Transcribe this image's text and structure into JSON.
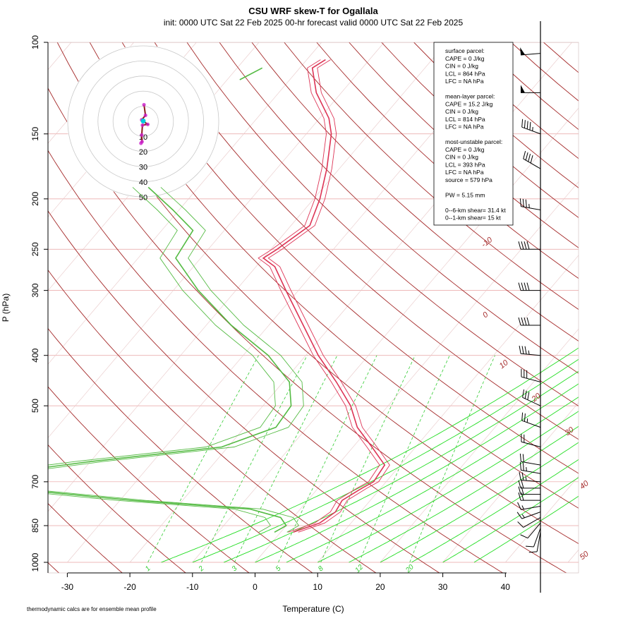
{
  "chart_data": {
    "type": "skew-T log-P sounding",
    "title": "CSU WRF skew-T for Ogallala",
    "subtitle": "init: 0000 UTC Sat 22 Feb 2025     00-hr forecast valid 0000 UTC Sat 22 Feb 2025",
    "xlabel": "Temperature (C)",
    "ylabel": "P (hPa)",
    "footnote": "thermodynamic calcs are for ensemble mean profile",
    "pressure_scale": "log",
    "pressure_range_hpa": [
      1000,
      100
    ],
    "temperature_ticks_c": [
      "-30",
      "-20",
      "-10",
      "0",
      "10",
      "20",
      "30",
      "40"
    ],
    "pressure_ticks_hpa": [
      "100",
      "150",
      "200",
      "250",
      "300",
      "400",
      "500",
      "700",
      "850",
      "1000"
    ],
    "isotherm_labels_c": [
      "-10",
      "0",
      "10",
      "20",
      "30",
      "40",
      "50"
    ],
    "mixing_ratio_labels_gkg": [
      "1",
      "2",
      "3",
      "5",
      "8",
      "12",
      "20"
    ],
    "temperature_series": [
      {
        "p": 875,
        "t": 2.0
      },
      {
        "p": 840,
        "t": 5.0
      },
      {
        "p": 800,
        "t": 6.0
      },
      {
        "p": 760,
        "t": 5.5
      },
      {
        "p": 720,
        "t": 7.0
      },
      {
        "p": 700,
        "t": 8.0
      },
      {
        "p": 650,
        "t": 7.5
      },
      {
        "p": 600,
        "t": 3.0
      },
      {
        "p": 550,
        "t": -2.0
      },
      {
        "p": 500,
        "t": -6.0
      },
      {
        "p": 450,
        "t": -11.5
      },
      {
        "p": 400,
        "t": -18.0
      },
      {
        "p": 350,
        "t": -24.5
      },
      {
        "p": 300,
        "t": -32.0
      },
      {
        "p": 270,
        "t": -37.0
      },
      {
        "p": 260,
        "t": -40.0
      },
      {
        "p": 250,
        "t": -39.0
      },
      {
        "p": 225,
        "t": -37.0
      },
      {
        "p": 200,
        "t": -39.0
      },
      {
        "p": 175,
        "t": -42.0
      },
      {
        "p": 150,
        "t": -46.0
      },
      {
        "p": 140,
        "t": -48.5
      },
      {
        "p": 125,
        "t": -54.0
      },
      {
        "p": 112,
        "t": -58.0
      },
      {
        "p": 108,
        "t": -57.0
      }
    ],
    "dewpoint_series": [
      {
        "p": 875,
        "t": -1.0
      },
      {
        "p": 850,
        "t": 0.0
      },
      {
        "p": 820,
        "t": -2.0
      },
      {
        "p": 790,
        "t": -8.0
      },
      {
        "p": 760,
        "t": -28.0
      },
      {
        "p": 720,
        "t": -50.0
      },
      {
        "p": 680,
        "t": -55.0
      },
      {
        "p": 640,
        "t": -40.0
      },
      {
        "p": 600,
        "t": -21.0
      },
      {
        "p": 550,
        "t": -15.0
      },
      {
        "p": 500,
        "t": -15.5
      },
      {
        "p": 450,
        "t": -19.0
      },
      {
        "p": 400,
        "t": -26.0
      },
      {
        "p": 350,
        "t": -36.0
      },
      {
        "p": 300,
        "t": -46.0
      },
      {
        "p": 260,
        "t": -54.0
      },
      {
        "p": 230,
        "t": -55.0
      },
      {
        "p": 210,
        "t": -61.0
      },
      {
        "p": 190,
        "t": -68.0
      }
    ],
    "stratosphere_dewpoint_segment": [
      {
        "p": 118,
        "t": -68.0
      },
      {
        "p": 112,
        "t": -66.0
      }
    ],
    "hodograph_ring_labels_kt": [
      "10",
      "20",
      "30",
      "40",
      "50"
    ],
    "hodograph_trace_kt": [
      {
        "u": 0.5,
        "v": 11.0
      },
      {
        "u": 1.5,
        "v": 4.0
      },
      {
        "u": -1.0,
        "v": 1.0
      },
      {
        "u": 3.0,
        "v": -2.0
      },
      {
        "u": -0.5,
        "v": -2.5
      },
      {
        "u": -1.0,
        "v": -9.0
      },
      {
        "u": -0.8,
        "v": -13.5
      },
      {
        "u": -1.5,
        "v": -14.5
      }
    ],
    "wind_barbs": [
      {
        "p": 875,
        "dir": 190,
        "kt": 10
      },
      {
        "p": 860,
        "dir": 200,
        "kt": 10
      },
      {
        "p": 840,
        "dir": 220,
        "kt": 10
      },
      {
        "p": 820,
        "dir": 240,
        "kt": 10
      },
      {
        "p": 800,
        "dir": 250,
        "kt": 15
      },
      {
        "p": 780,
        "dir": 260,
        "kt": 15
      },
      {
        "p": 760,
        "dir": 270,
        "kt": 20
      },
      {
        "p": 740,
        "dir": 270,
        "kt": 20
      },
      {
        "p": 720,
        "dir": 270,
        "kt": 20
      },
      {
        "p": 700,
        "dir": 275,
        "kt": 25
      },
      {
        "p": 675,
        "dir": 280,
        "kt": 25
      },
      {
        "p": 650,
        "dir": 280,
        "kt": 20
      },
      {
        "p": 600,
        "dir": 285,
        "kt": 20
      },
      {
        "p": 550,
        "dir": 290,
        "kt": 25
      },
      {
        "p": 500,
        "dir": 295,
        "kt": 30
      },
      {
        "p": 450,
        "dir": 285,
        "kt": 30
      },
      {
        "p": 400,
        "dir": 275,
        "kt": 35
      },
      {
        "p": 350,
        "dir": 270,
        "kt": 40
      },
      {
        "p": 300,
        "dir": 270,
        "kt": 40
      },
      {
        "p": 250,
        "dir": 270,
        "kt": 40
      },
      {
        "p": 210,
        "dir": 280,
        "kt": 35
      },
      {
        "p": 175,
        "dir": 300,
        "kt": 40
      },
      {
        "p": 150,
        "dir": 290,
        "kt": 45
      },
      {
        "p": 125,
        "dir": 270,
        "kt": 50
      },
      {
        "p": 105,
        "dir": 265,
        "kt": 50
      }
    ],
    "info_box_lines": [
      "surface parcel:",
      "CAPE = 0 J/kg",
      "CIN = 0 J/kg",
      "LCL = 864 hPa",
      "LFC = NA hPa",
      "",
      "mean-layer parcel:",
      "CAPE = 15.2 J/kg",
      "CIN = 0 J/kg",
      "LCL = 814 hPa",
      "LFC = NA hPa",
      "",
      "most-unstable parcel:",
      "CAPE = 0 J/kg",
      "CIN = 0 J/kg",
      "LCL = 393 hPa",
      "LFC = NA hPa",
      "source = 579 hPa",
      "",
      "PW =  5.15 mm",
      "",
      "0--6-km shear= 31.4 kt",
      "0--1-km shear= 15 kt"
    ],
    "colors": {
      "temperature": "#dd3355",
      "dewpoint": "#55bb44",
      "dry_adiabat": "#a52a2a",
      "moist_adiabat": "#22dd22",
      "mixing_ratio": "#33cc33",
      "isobar": "#e8a0a0",
      "isotherm": "#e8c8c8",
      "hodograph": "#8b1a1a",
      "hodograph_points": "#cc22cc",
      "hodograph_surface": "#00ccdd"
    }
  }
}
